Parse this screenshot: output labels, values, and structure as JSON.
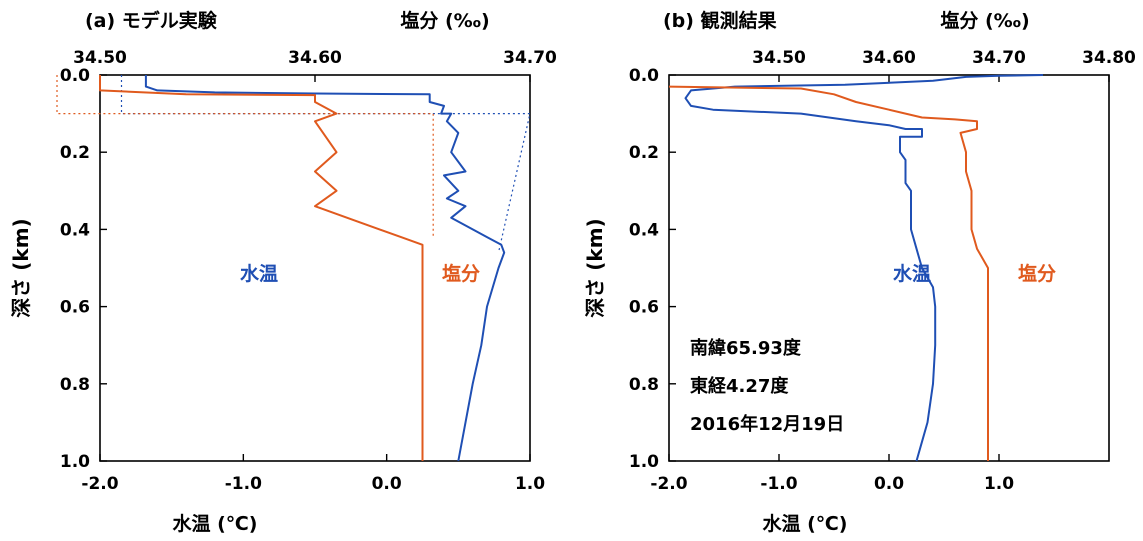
{
  "chart_data": [
    {
      "type": "line",
      "title": "(a) モデル実験",
      "top_axis_label": "塩分 (‰)",
      "xlabel": "水温 (℃)",
      "ylabel": "深さ (km)",
      "ylim": [
        0.0,
        1.0
      ],
      "y_ticks": [
        "0.0",
        "0.2",
        "0.4",
        "0.6",
        "0.8",
        "1.0"
      ],
      "x_bottom": {
        "lim": [
          -2.0,
          1.0
        ],
        "ticks": [
          "-2.0",
          "-1.0",
          "0.0",
          "1.0"
        ]
      },
      "x_top": {
        "lim": [
          34.5,
          34.7
        ],
        "ticks": [
          "34.50",
          "34.60",
          "34.70"
        ]
      },
      "series": [
        {
          "name": "水温",
          "color": "#1f4fb4",
          "axis": "bottom",
          "points": [
            [
              -1.68,
              0.0
            ],
            [
              -1.68,
              0.03
            ],
            [
              -1.6,
              0.04
            ],
            [
              -1.2,
              0.045
            ],
            [
              -0.5,
              0.048
            ],
            [
              0.3,
              0.05
            ],
            [
              0.3,
              0.07
            ],
            [
              0.4,
              0.08
            ],
            [
              0.38,
              0.1
            ],
            [
              0.45,
              0.1
            ],
            [
              0.42,
              0.12
            ],
            [
              0.5,
              0.15
            ],
            [
              0.45,
              0.2
            ],
            [
              0.55,
              0.25
            ],
            [
              0.4,
              0.26
            ],
            [
              0.5,
              0.3
            ],
            [
              0.42,
              0.32
            ],
            [
              0.55,
              0.34
            ],
            [
              0.45,
              0.37
            ],
            [
              0.6,
              0.4
            ],
            [
              0.7,
              0.42
            ],
            [
              0.8,
              0.44
            ],
            [
              0.82,
              0.46
            ],
            [
              0.78,
              0.5
            ],
            [
              0.7,
              0.6
            ],
            [
              0.66,
              0.7
            ],
            [
              0.6,
              0.8
            ],
            [
              0.55,
              0.9
            ],
            [
              0.5,
              1.0
            ]
          ]
        },
        {
          "name": "塩分",
          "color": "#e05a1e",
          "axis": "top",
          "points": [
            [
              34.5,
              0.0
            ],
            [
              34.5,
              0.04
            ],
            [
              34.54,
              0.05
            ],
            [
              34.6,
              0.052
            ],
            [
              34.6,
              0.07
            ],
            [
              34.61,
              0.1
            ],
            [
              34.6,
              0.12
            ],
            [
              34.61,
              0.2
            ],
            [
              34.6,
              0.25
            ],
            [
              34.61,
              0.3
            ],
            [
              34.6,
              0.34
            ],
            [
              34.62,
              0.38
            ],
            [
              34.64,
              0.42
            ],
            [
              34.65,
              0.44
            ],
            [
              34.65,
              0.5
            ],
            [
              34.65,
              1.0
            ]
          ]
        }
      ],
      "reference_lines": [
        {
          "color": "#1f4fb4",
          "axis": "bottom",
          "points": [
            [
              -1.85,
              0.0
            ],
            [
              -1.85,
              0.1
            ],
            [
              1.0,
              0.1
            ],
            [
              0.78,
              0.46
            ]
          ]
        },
        {
          "color": "#e05a1e",
          "axis": "top",
          "points": [
            [
              34.48,
              0.0
            ],
            [
              34.48,
              0.1
            ],
            [
              34.655,
              0.1
            ],
            [
              34.655,
              0.42
            ]
          ]
        }
      ],
      "annotations": [
        {
          "text": "水温",
          "color": "#1f4fb4"
        },
        {
          "text": "塩分",
          "color": "#e05a1e"
        }
      ]
    },
    {
      "type": "line",
      "title": "(b) 観測結果",
      "top_axis_label": "塩分 (‰)",
      "xlabel": "水温 (℃)",
      "ylabel": "深さ (km)",
      "ylim": [
        0.0,
        1.0
      ],
      "y_ticks": [
        "0.0",
        "0.2",
        "0.4",
        "0.6",
        "0.8",
        "1.0"
      ],
      "x_bottom": {
        "lim": [
          -2.0,
          2.0
        ],
        "ticks": [
          "-2.0",
          "-1.0",
          "0.0",
          "1.0"
        ]
      },
      "x_top": {
        "lim": [
          34.4,
          34.8
        ],
        "ticks": [
          "34.50",
          "34.60",
          "34.70",
          "34.80"
        ]
      },
      "series": [
        {
          "name": "水温",
          "color": "#1f4fb4",
          "axis": "bottom",
          "points": [
            [
              1.4,
              0.0
            ],
            [
              1.0,
              0.002
            ],
            [
              0.7,
              0.005
            ],
            [
              0.4,
              0.015
            ],
            [
              -0.4,
              0.025
            ],
            [
              -1.4,
              0.03
            ],
            [
              -1.8,
              0.04
            ],
            [
              -1.85,
              0.06
            ],
            [
              -1.8,
              0.08
            ],
            [
              -1.6,
              0.09
            ],
            [
              -1.2,
              0.095
            ],
            [
              -0.8,
              0.1
            ],
            [
              -0.3,
              0.12
            ],
            [
              0.0,
              0.13
            ],
            [
              0.15,
              0.14
            ],
            [
              0.3,
              0.14
            ],
            [
              0.3,
              0.16
            ],
            [
              0.1,
              0.16
            ],
            [
              0.1,
              0.2
            ],
            [
              0.15,
              0.22
            ],
            [
              0.15,
              0.28
            ],
            [
              0.2,
              0.3
            ],
            [
              0.2,
              0.4
            ],
            [
              0.25,
              0.45
            ],
            [
              0.3,
              0.5
            ],
            [
              0.4,
              0.55
            ],
            [
              0.42,
              0.6
            ],
            [
              0.42,
              0.7
            ],
            [
              0.4,
              0.8
            ],
            [
              0.35,
              0.9
            ],
            [
              0.3,
              0.95
            ],
            [
              0.25,
              1.0
            ]
          ]
        },
        {
          "name": "塩分",
          "color": "#e05a1e",
          "axis": "top",
          "points": [
            [
              34.4,
              0.03
            ],
            [
              34.52,
              0.035
            ],
            [
              34.55,
              0.05
            ],
            [
              34.57,
              0.07
            ],
            [
              34.6,
              0.09
            ],
            [
              34.63,
              0.11
            ],
            [
              34.66,
              0.115
            ],
            [
              34.68,
              0.12
            ],
            [
              34.68,
              0.14
            ],
            [
              34.665,
              0.15
            ],
            [
              34.67,
              0.2
            ],
            [
              34.67,
              0.25
            ],
            [
              34.675,
              0.3
            ],
            [
              34.675,
              0.4
            ],
            [
              34.68,
              0.45
            ],
            [
              34.69,
              0.5
            ],
            [
              34.69,
              0.6
            ],
            [
              34.69,
              0.8
            ],
            [
              34.69,
              1.0
            ]
          ]
        }
      ],
      "annotations": [
        {
          "text": "水温",
          "color": "#1f4fb4"
        },
        {
          "text": "塩分",
          "color": "#e05a1e"
        },
        {
          "text": "南緯65.93度"
        },
        {
          "text": "東経4.27度"
        },
        {
          "text": "2016年12月19日"
        }
      ]
    }
  ]
}
